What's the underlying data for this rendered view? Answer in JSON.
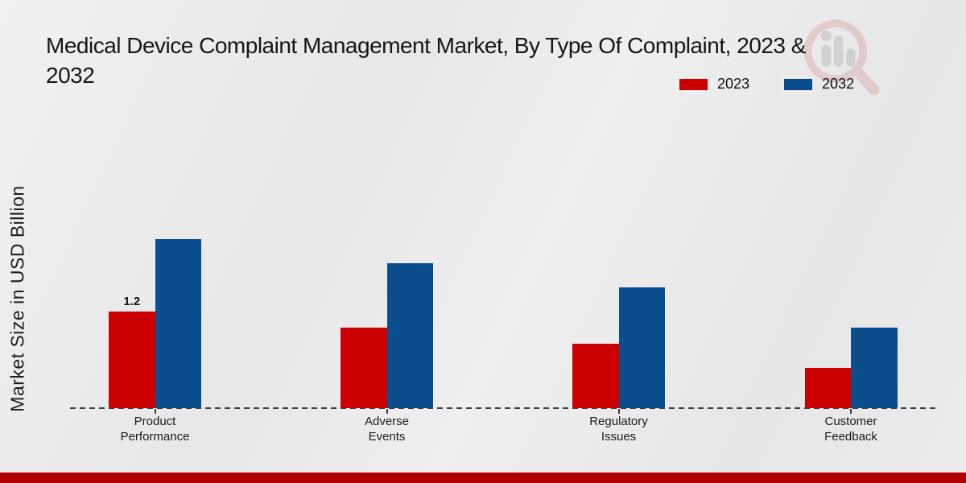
{
  "page": {
    "title_line1": "Medical Device Complaint Management Market, By Type Of Complaint, 2023 &",
    "title_line2": "2032"
  },
  "legend": {
    "position": "top-right",
    "items": [
      {
        "label": "2023",
        "color": "#CC0000"
      },
      {
        "label": "2032",
        "color": "#0B4E8E"
      }
    ]
  },
  "watermark": {
    "name": "market-research-magnifier-logo",
    "ring_color": "#d99898",
    "bars_color": "#bdbdbd"
  },
  "footer": {
    "bar_color": "#B00000"
  },
  "chart_data": {
    "type": "bar",
    "title": "Medical Device Complaint Management Market, By Type Of Complaint, 2023 & 2032",
    "ylabel": "Market Size in USD Billion",
    "xlabel": "",
    "categories": [
      "Product Performance",
      "Adverse Events",
      "Regulatory Issues",
      "Customer Feedback"
    ],
    "tick_label_lines": [
      [
        "Product",
        "Performance"
      ],
      [
        "Adverse",
        "Events"
      ],
      [
        "Regulatory",
        "Issues"
      ],
      [
        "Customer",
        "Feedback"
      ]
    ],
    "series": [
      {
        "name": "2023",
        "color": "#CC0000",
        "values": [
          1.2,
          1.0,
          0.8,
          0.5
        ]
      },
      {
        "name": "2032",
        "color": "#0B4E8E",
        "values": [
          2.1,
          1.8,
          1.5,
          1.0
        ]
      }
    ],
    "bar_value_labels": [
      {
        "series": "2023",
        "category_index": 0,
        "label": "1.2"
      }
    ],
    "ylim": [
      0,
      2.5
    ],
    "grid": false,
    "x_axis_style": "dashed",
    "legend_position": "top-right"
  }
}
